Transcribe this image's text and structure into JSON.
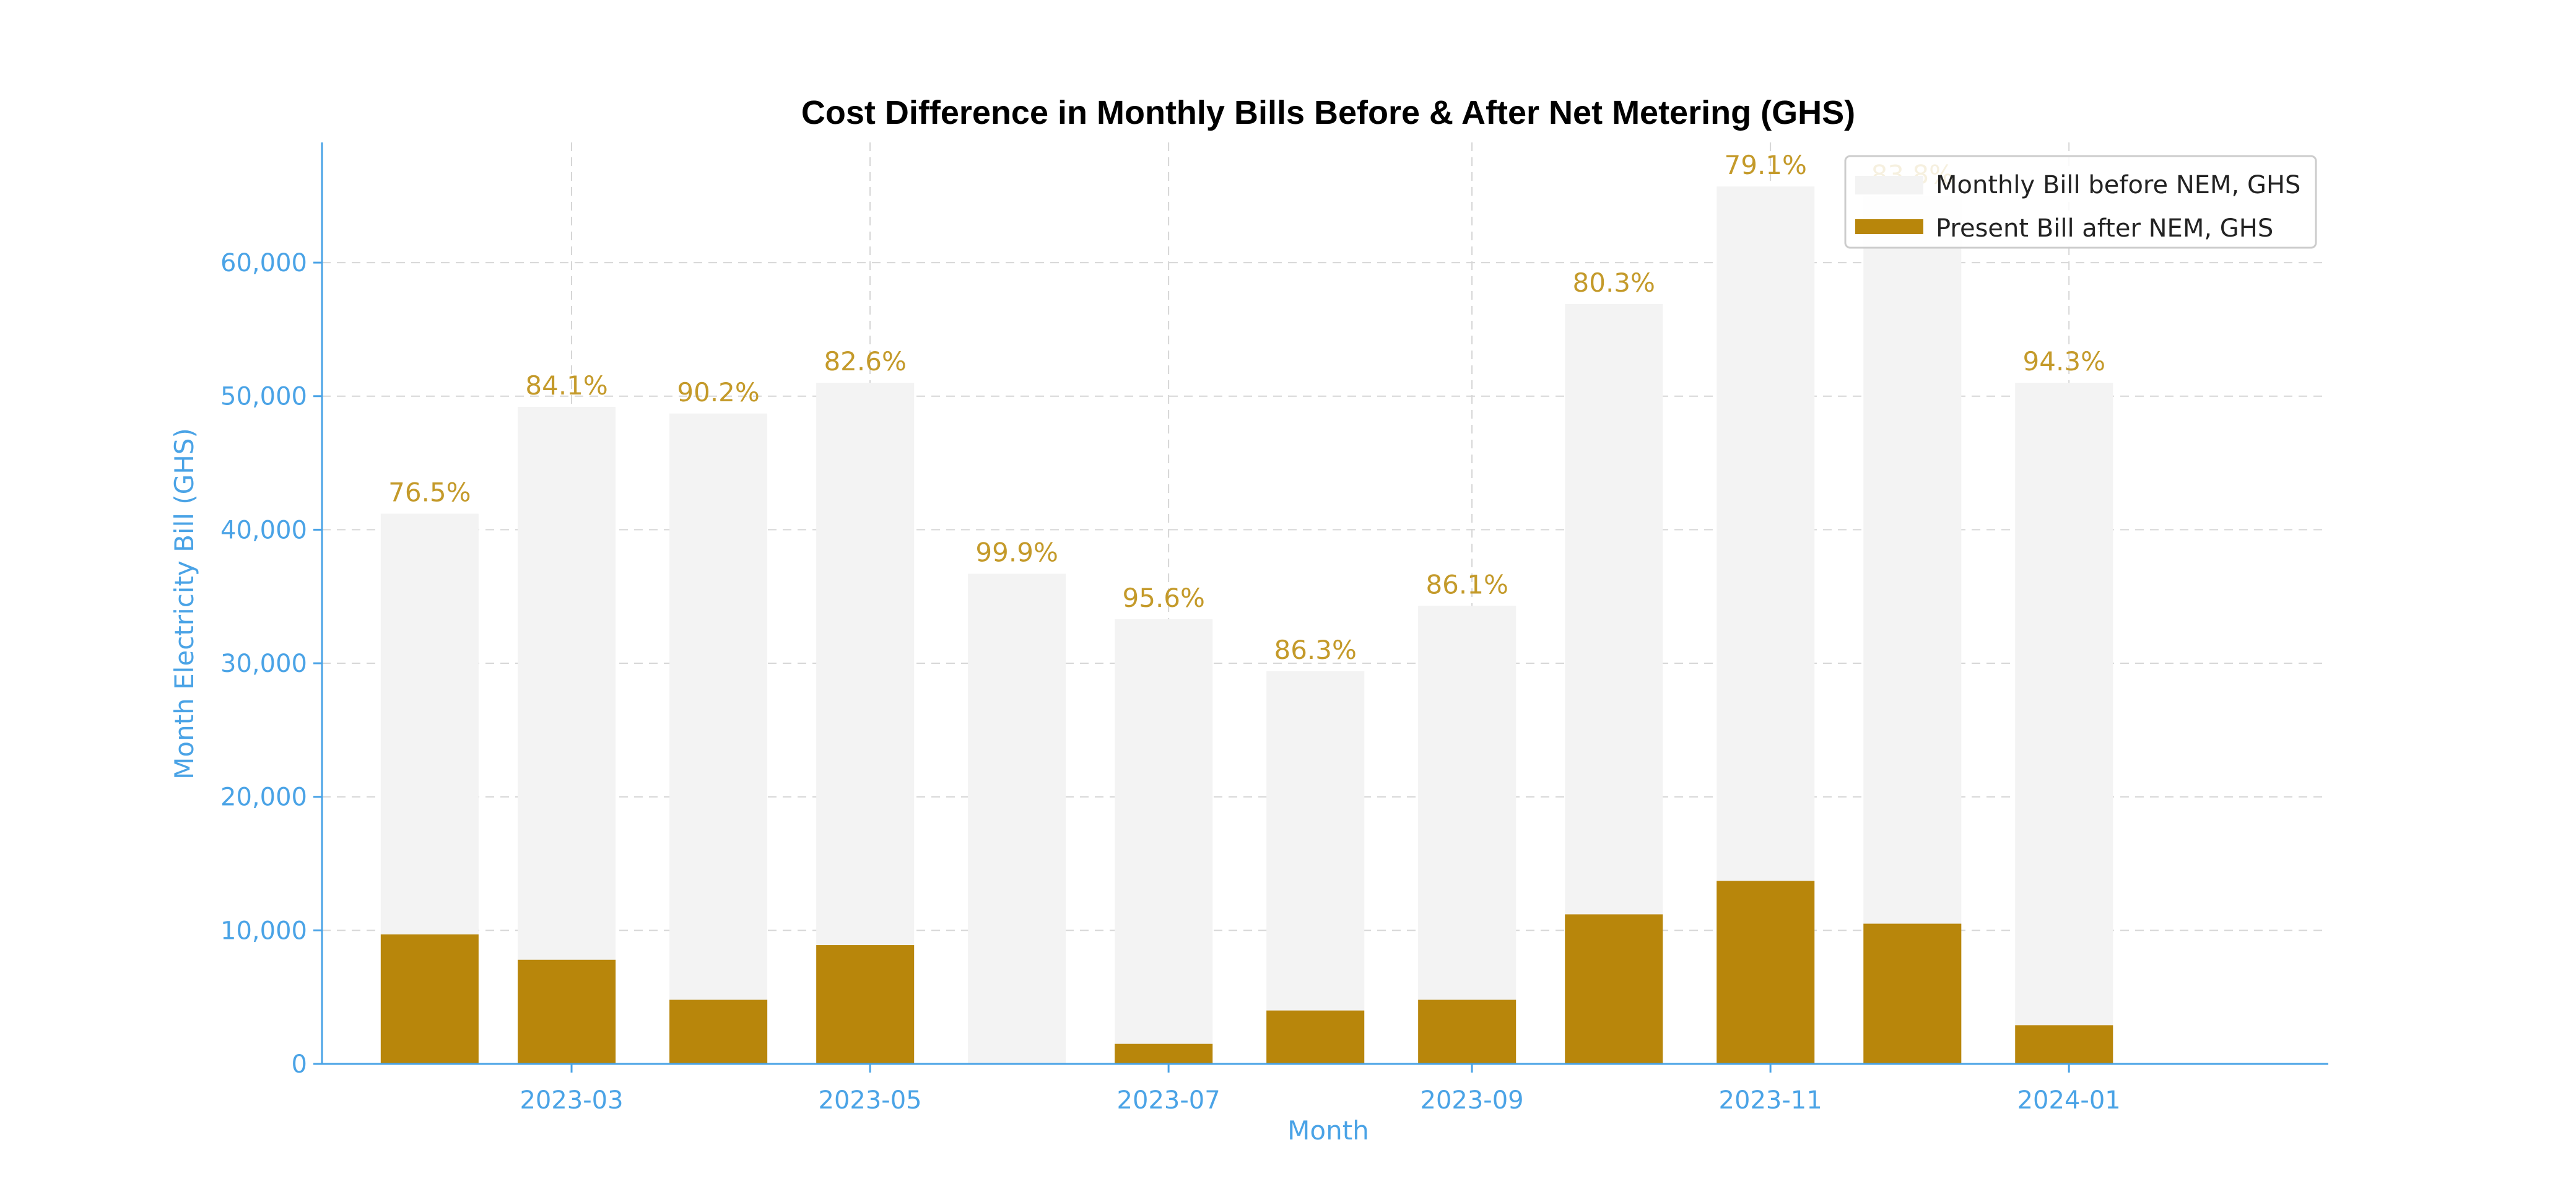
{
  "chart_data": {
    "type": "bar",
    "title": "Cost Difference in Monthly Bills Before & After Net Metering (GHS)",
    "xlabel": "Month",
    "ylabel": "Month Electricity Bill (GHS)",
    "ylim": [
      0,
      69000
    ],
    "y_ticks": [
      0,
      10000,
      20000,
      30000,
      40000,
      50000,
      60000
    ],
    "y_tick_labels": [
      "0",
      "10,000",
      "20,000",
      "30,000",
      "40,000",
      "50,000",
      "60,000"
    ],
    "x_tick_labels": [
      "2023-03",
      "2023-05",
      "2023-07",
      "2023-09",
      "2023-11",
      "2024-01"
    ],
    "x_tick_dates": [
      "2023-03-01",
      "2023-05-01",
      "2023-07-01",
      "2023-09-01",
      "2023-11-01",
      "2024-01-01"
    ],
    "x_range": [
      "2023-01-09",
      "2024-02-23"
    ],
    "dates": [
      "2023-01-31",
      "2023-02-28",
      "2023-03-31",
      "2023-04-30",
      "2023-05-31",
      "2023-06-30",
      "2023-07-31",
      "2023-08-31",
      "2023-09-30",
      "2023-10-31",
      "2023-11-30",
      "2023-12-31"
    ],
    "grid": true,
    "legend_position": "top-right",
    "series": [
      {
        "name": "Monthly Bill before NEM, GHS",
        "color": "#f3f3f3",
        "values": [
          41200,
          49200,
          48700,
          51000,
          36700,
          33300,
          29400,
          34300,
          56900,
          65700,
          65000,
          51000
        ]
      },
      {
        "name": "Present Bill after NEM, GHS",
        "color": "#b8860b",
        "values": [
          9700,
          7800,
          4800,
          8900,
          50,
          1500,
          4000,
          4800,
          11200,
          13700,
          10500,
          2900
        ]
      }
    ],
    "annotations": [
      "76.5%",
      "84.1%",
      "90.2%",
      "82.6%",
      "99.9%",
      "95.6%",
      "86.3%",
      "86.1%",
      "80.3%",
      "79.1%",
      "83.8%",
      "94.3%"
    ],
    "annotation_color": "#c49a2a"
  }
}
